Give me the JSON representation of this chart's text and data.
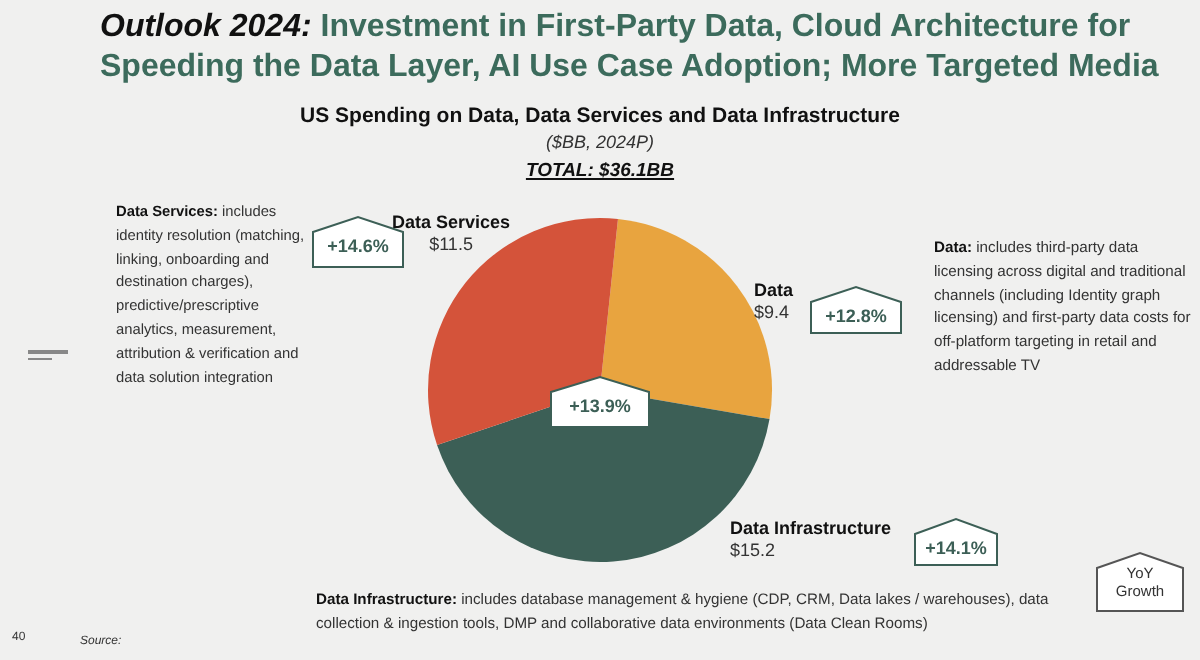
{
  "chart_data": {
    "type": "pie",
    "title": "US Spending on Data, Data Services and Data Infrastructure",
    "subtitle": "($BB, 2024P)",
    "categories": [
      "Data",
      "Data Infrastructure",
      "Data Services"
    ],
    "values": [
      9.4,
      15.2,
      11.5
    ],
    "value_labels": [
      "$9.4",
      "$15.2",
      "$11.5"
    ],
    "colors": [
      "#e8a43f",
      "#3c5f56",
      "#d4533a"
    ],
    "legend": false,
    "annotations": [
      "Outlook 2024: Investment in First-Party Data, Cloud Architecture for Speeding the Data Layer, AI Use Case Adoption; More Targeted Media",
      "TOTAL: $36.1BB",
      "Data Services: includes identity resolution (matching, linking, onboarding and destination charges), predictive/prescriptive analytics, measurement, attribution & verification and data solution integration",
      "Data: includes third-party data licensing across digital and traditional channels (including Identity graph licensing) and first-party data costs for off-platform targeting in retail and addressable TV",
      "Data Infrastructure: includes database management & hygiene (CDP, CRM, Data lakes / warehouses), data collection & ingestion tools, DMP and collaborative data environments (Data Clean Rooms)",
      "+12.8%",
      "+14.1%",
      "+14.6%",
      "+13.9%",
      "YoY Growth",
      "Source:",
      "40"
    ]
  }
}
